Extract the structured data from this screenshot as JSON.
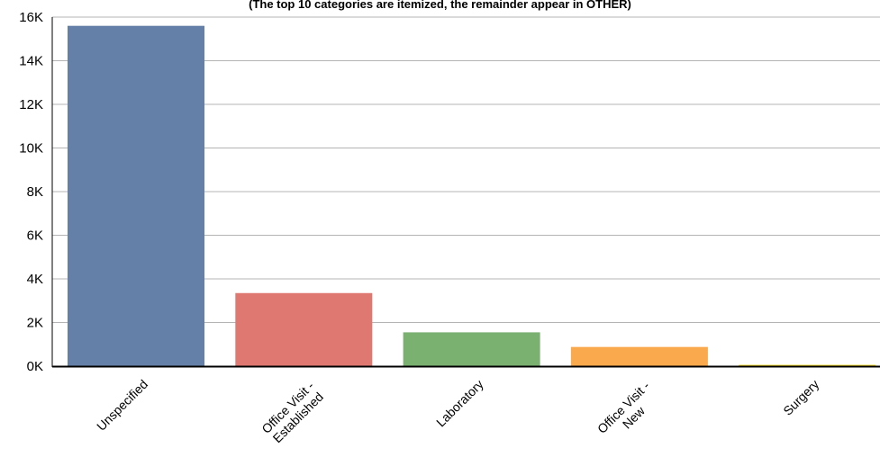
{
  "chart_data": {
    "type": "bar",
    "subtitle": "(The top 10 categories are itemized, the remainder appear in OTHER)",
    "categories": [
      [
        "Unspecified"
      ],
      [
        "Office Visit -",
        "Established"
      ],
      [
        "Laboratory"
      ],
      [
        "Office Visit -",
        "New"
      ],
      [
        "Surgery"
      ]
    ],
    "values": [
      15600,
      3350,
      1550,
      880,
      60
    ],
    "colors": [
      "#6480a8",
      "#e07872",
      "#7ab070",
      "#fba94d",
      "#f5d320"
    ],
    "ylim": [
      0,
      16000
    ],
    "yticks": [
      {
        "value": 0,
        "label": "0K"
      },
      {
        "value": 2000,
        "label": "2K"
      },
      {
        "value": 4000,
        "label": "4K"
      },
      {
        "value": 6000,
        "label": "6K"
      },
      {
        "value": 8000,
        "label": "8K"
      },
      {
        "value": 10000,
        "label": "10K"
      },
      {
        "value": 12000,
        "label": "12K"
      },
      {
        "value": 14000,
        "label": "14K"
      },
      {
        "value": 16000,
        "label": "16K"
      }
    ],
    "grid": true,
    "xlabel": "",
    "ylabel": ""
  }
}
